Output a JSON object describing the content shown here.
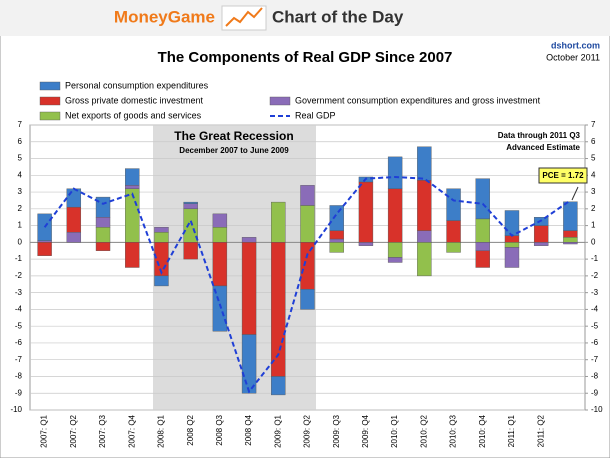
{
  "header": {
    "brand": "MoneyGame",
    "tagline": "Chart of the Day",
    "site": "dshort.com",
    "date": "October 2011"
  },
  "chart_data": {
    "type": "bar",
    "stacked": true,
    "title": "The Components of Real GDP Since 2007",
    "annotations": {
      "recession_title": "The Great Recession",
      "recession_dates": "December 2007  to June 2009",
      "note1": "Data through 2011 Q3",
      "note2": "Advanced Estimate",
      "callout": "PCE = 1.72"
    },
    "categories": [
      "2007: Q1",
      "2007: Q2",
      "2007: Q3",
      "2007: Q4",
      "2008: Q1",
      "2008 Q2",
      "2008 Q3",
      "2008 Q4",
      "2009: Q1",
      "2009: Q2",
      "2009: Q3",
      "2009: Q4",
      "2010: Q1",
      "2010: Q2",
      "2010: Q3",
      "2010: Q4",
      "2011: Q1",
      "2011: Q2",
      null
    ],
    "series": [
      {
        "name": "Personal consumption expenditures",
        "color": "#3d7ec8",
        "values": [
          1.6,
          1.1,
          1.2,
          1.0,
          -0.6,
          0.1,
          -2.7,
          -3.5,
          -1.1,
          -1.2,
          1.5,
          0.3,
          1.9,
          2.0,
          1.9,
          2.4,
          1.5,
          0.5,
          1.72
        ]
      },
      {
        "name": "Gross private domestic investment",
        "color": "#d8322a",
        "values": [
          -0.8,
          1.5,
          -0.5,
          -1.5,
          -2.0,
          -1.0,
          -2.6,
          -5.5,
          -8.0,
          -2.8,
          0.5,
          3.6,
          3.2,
          3.0,
          1.3,
          -1.0,
          0.4,
          1.0,
          0.4
        ]
      },
      {
        "name": "Government consumption expenditures and gross investment",
        "color": "#8a6cb8",
        "values": [
          0.1,
          0.6,
          0.6,
          0.2,
          0.3,
          0.3,
          0.8,
          0.3,
          0.0,
          1.2,
          0.2,
          -0.2,
          -0.3,
          0.7,
          0.0,
          -0.5,
          -1.2,
          -0.2,
          -0.1
        ]
      },
      {
        "name": "Net exports of goods and services",
        "color": "#92c04c",
        "values": [
          0.0,
          0.0,
          0.9,
          3.2,
          0.6,
          2.0,
          0.9,
          0.0,
          2.4,
          2.2,
          -0.6,
          0.0,
          -0.9,
          -2.0,
          -0.6,
          1.4,
          -0.3,
          0.0,
          0.3
        ]
      },
      {
        "name": "Real GDP",
        "color": "#1f3fd6",
        "kind": "line",
        "dashed": true,
        "values": [
          0.9,
          3.2,
          2.3,
          2.9,
          -1.8,
          1.3,
          -3.7,
          -8.9,
          -6.7,
          -0.7,
          1.7,
          3.8,
          3.9,
          3.8,
          2.5,
          2.3,
          0.4,
          1.3,
          2.5
        ]
      }
    ],
    "ylim": [
      -10,
      7
    ],
    "yticks": [
      -10,
      -9,
      -8,
      -7,
      -6,
      -5,
      -4,
      -3,
      -2,
      -1,
      0,
      1,
      2,
      3,
      4,
      5,
      6,
      7
    ],
    "y2lim": [
      -10,
      7
    ],
    "y2ticks": [
      -10,
      -9,
      -8,
      -7,
      -6,
      -5,
      -4,
      -3,
      -2,
      -1,
      0,
      1,
      2,
      3,
      4,
      5,
      6,
      7
    ],
    "grid": true
  }
}
